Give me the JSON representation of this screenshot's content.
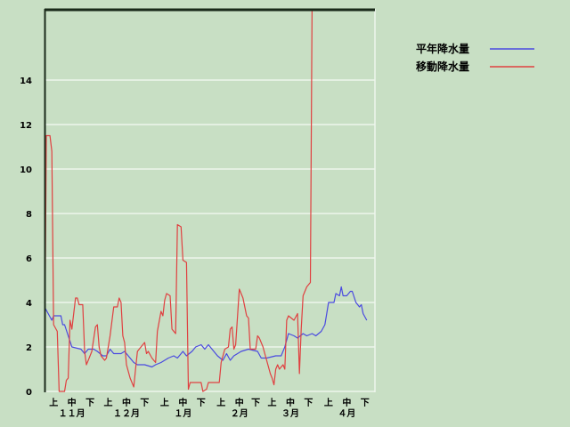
{
  "chart_data": {
    "type": "line",
    "title": "",
    "xlabel": "",
    "ylabel": "",
    "ylim": [
      0,
      17.2
    ],
    "yticks": [
      "0",
      "2",
      "4",
      "6",
      "8",
      "10",
      "12",
      "14"
    ],
    "grid": true,
    "legend_position": "top-right",
    "x_range": [
      "11-01",
      "04-30"
    ],
    "dekad_labels": [
      "上",
      "中",
      "下"
    ],
    "months": [
      "１１月",
      "１２月",
      "１月",
      "２月",
      "３月",
      "４月"
    ],
    "series": [
      {
        "name": "平年降水量",
        "color": "#4a4ae0",
        "points": [
          [
            "11-01",
            3.8
          ],
          [
            "11-03",
            3.5
          ],
          [
            "11-05",
            3.2
          ],
          [
            "11-06",
            3.4
          ],
          [
            "11-10",
            3.4
          ],
          [
            "11-11",
            3.0
          ],
          [
            "11-12",
            3.0
          ],
          [
            "11-14",
            2.5
          ],
          [
            "11-16",
            2.0
          ],
          [
            "11-21",
            1.9
          ],
          [
            "11-23",
            1.7
          ],
          [
            "11-25",
            1.9
          ],
          [
            "11-28",
            1.9
          ],
          [
            "11-30",
            1.8
          ],
          [
            "12-03",
            1.6
          ],
          [
            "12-05",
            1.6
          ],
          [
            "12-07",
            1.9
          ],
          [
            "12-09",
            1.7
          ],
          [
            "12-13",
            1.7
          ],
          [
            "12-15",
            1.8
          ],
          [
            "12-17",
            1.6
          ],
          [
            "12-20",
            1.3
          ],
          [
            "12-22",
            1.2
          ],
          [
            "12-26",
            1.2
          ],
          [
            "12-30",
            1.1
          ],
          [
            "01-01",
            1.2
          ],
          [
            "01-04",
            1.3
          ],
          [
            "01-08",
            1.5
          ],
          [
            "01-11",
            1.6
          ],
          [
            "01-13",
            1.5
          ],
          [
            "01-16",
            1.8
          ],
          [
            "01-18",
            1.6
          ],
          [
            "01-21",
            1.8
          ],
          [
            "01-23",
            2.0
          ],
          [
            "01-26",
            2.1
          ],
          [
            "01-28",
            1.9
          ],
          [
            "01-30",
            2.1
          ],
          [
            "02-02",
            1.8
          ],
          [
            "02-04",
            1.6
          ],
          [
            "02-07",
            1.4
          ],
          [
            "02-09",
            1.7
          ],
          [
            "02-11",
            1.4
          ],
          [
            "02-13",
            1.6
          ],
          [
            "02-17",
            1.8
          ],
          [
            "02-21",
            1.9
          ],
          [
            "02-26",
            1.8
          ],
          [
            "02-28",
            1.5
          ],
          [
            "03-03",
            1.5
          ],
          [
            "03-08",
            1.6
          ],
          [
            "03-11",
            1.6
          ],
          [
            "03-13",
            2.0
          ],
          [
            "03-15",
            2.6
          ],
          [
            "03-18",
            2.5
          ],
          [
            "03-20",
            2.4
          ],
          [
            "03-23",
            2.6
          ],
          [
            "03-25",
            2.5
          ],
          [
            "03-28",
            2.6
          ],
          [
            "03-30",
            2.5
          ],
          [
            "04-02",
            2.7
          ],
          [
            "04-04",
            3.0
          ],
          [
            "04-06",
            4.0
          ],
          [
            "04-09",
            4.0
          ],
          [
            "04-10",
            4.4
          ],
          [
            "04-12",
            4.3
          ],
          [
            "04-13",
            4.7
          ],
          [
            "04-14",
            4.3
          ],
          [
            "04-16",
            4.3
          ],
          [
            "04-18",
            4.5
          ],
          [
            "04-19",
            4.5
          ],
          [
            "04-21",
            4.0
          ],
          [
            "04-23",
            3.8
          ],
          [
            "04-24",
            3.9
          ],
          [
            "04-25",
            3.5
          ],
          [
            "04-27",
            3.2
          ]
        ]
      },
      {
        "name": "移動降水量",
        "color": "#e04040",
        "points": [
          [
            "11-01",
            0
          ],
          [
            "11-02",
            11.5
          ],
          [
            "11-04",
            11.5
          ],
          [
            "11-05",
            10.8
          ],
          [
            "11-06",
            3.0
          ],
          [
            "11-08",
            2.7
          ],
          [
            "11-09",
            0
          ],
          [
            "11-12",
            0
          ],
          [
            "11-13",
            0.5
          ],
          [
            "11-14",
            0.6
          ],
          [
            "11-15",
            3.2
          ],
          [
            "11-16",
            2.8
          ],
          [
            "11-18",
            4.2
          ],
          [
            "11-19",
            4.2
          ],
          [
            "11-20",
            3.9
          ],
          [
            "11-22",
            3.9
          ],
          [
            "11-23",
            1.8
          ],
          [
            "11-24",
            1.2
          ],
          [
            "11-25",
            1.4
          ],
          [
            "11-27",
            1.8
          ],
          [
            "11-29",
            2.9
          ],
          [
            "11-30",
            3.0
          ],
          [
            "12-01",
            2.0
          ],
          [
            "12-02",
            1.6
          ],
          [
            "12-04",
            1.4
          ],
          [
            "12-05",
            1.5
          ],
          [
            "12-07",
            2.5
          ],
          [
            "12-09",
            3.8
          ],
          [
            "12-11",
            3.8
          ],
          [
            "12-12",
            4.2
          ],
          [
            "12-13",
            4.0
          ],
          [
            "12-14",
            2.5
          ],
          [
            "12-15",
            2.2
          ],
          [
            "12-16",
            1.2
          ],
          [
            "12-18",
            0.6
          ],
          [
            "12-20",
            0.2
          ],
          [
            "12-21",
            1.0
          ],
          [
            "12-22",
            1.8
          ],
          [
            "12-24",
            2.0
          ],
          [
            "12-26",
            2.2
          ],
          [
            "12-27",
            1.7
          ],
          [
            "12-28",
            1.8
          ],
          [
            "12-30",
            1.5
          ],
          [
            "01-01",
            1.3
          ],
          [
            "01-02",
            2.7
          ],
          [
            "01-04",
            3.6
          ],
          [
            "01-05",
            3.4
          ],
          [
            "01-06",
            4.1
          ],
          [
            "01-07",
            4.4
          ],
          [
            "01-09",
            4.3
          ],
          [
            "01-10",
            2.8
          ],
          [
            "01-12",
            2.6
          ],
          [
            "01-13",
            7.5
          ],
          [
            "01-15",
            7.4
          ],
          [
            "01-16",
            5.9
          ],
          [
            "01-18",
            5.8
          ],
          [
            "01-19",
            0.1
          ],
          [
            "01-20",
            0.4
          ],
          [
            "01-26",
            0.4
          ],
          [
            "01-27",
            0
          ],
          [
            "01-29",
            0.1
          ],
          [
            "01-30",
            0.4
          ],
          [
            "02-05",
            0.4
          ],
          [
            "02-06",
            1.3
          ],
          [
            "02-08",
            1.9
          ],
          [
            "02-10",
            2.0
          ],
          [
            "02-11",
            2.8
          ],
          [
            "02-12",
            2.9
          ],
          [
            "02-13",
            1.9
          ],
          [
            "02-14",
            2.1
          ],
          [
            "02-16",
            4.6
          ],
          [
            "02-18",
            4.2
          ],
          [
            "02-20",
            3.4
          ],
          [
            "02-21",
            3.3
          ],
          [
            "02-22",
            1.9
          ],
          [
            "02-25",
            1.9
          ],
          [
            "02-26",
            2.5
          ],
          [
            "02-27",
            2.4
          ],
          [
            "03-01",
            2.0
          ],
          [
            "03-02",
            1.7
          ],
          [
            "03-03",
            1.4
          ],
          [
            "03-05",
            0.8
          ],
          [
            "03-06",
            0.6
          ],
          [
            "03-07",
            0.3
          ],
          [
            "03-08",
            1.0
          ],
          [
            "03-09",
            1.2
          ],
          [
            "03-10",
            1.0
          ],
          [
            "03-12",
            1.2
          ],
          [
            "03-13",
            1.0
          ],
          [
            "03-14",
            3.2
          ],
          [
            "03-15",
            3.4
          ],
          [
            "03-18",
            3.2
          ],
          [
            "03-20",
            3.5
          ],
          [
            "03-21",
            0.8
          ],
          [
            "03-22",
            2.8
          ],
          [
            "03-23",
            4.3
          ],
          [
            "03-25",
            4.7
          ],
          [
            "03-27",
            4.9
          ],
          [
            "03-28",
            18
          ]
        ]
      }
    ]
  }
}
